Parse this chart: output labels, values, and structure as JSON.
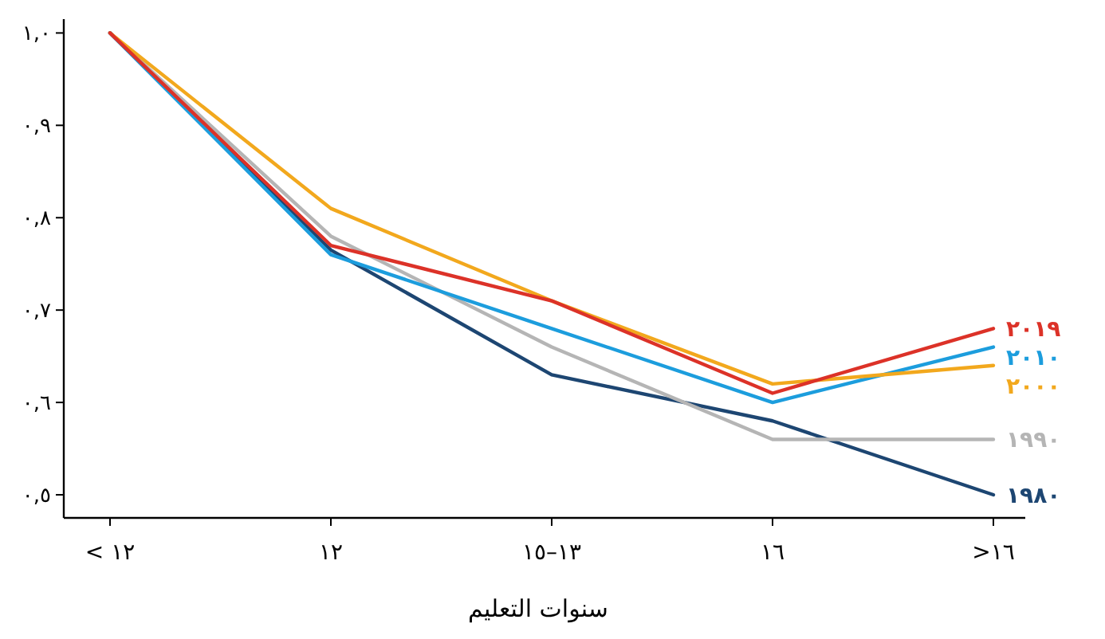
{
  "chart_data": {
    "type": "line",
    "xlabel": "سنوات التعليم",
    "categories": [
      "< ١٢",
      "١٢",
      "١٣–١٥",
      "١٦",
      ">١٦"
    ],
    "ylim": [
      0.475,
      1.015
    ],
    "yticks": [
      {
        "value": 0.5,
        "label": "٠,٥"
      },
      {
        "value": 0.6,
        "label": "٠,٦"
      },
      {
        "value": 0.7,
        "label": "٠,٧"
      },
      {
        "value": 0.8,
        "label": "٠,٨"
      },
      {
        "value": 0.9,
        "label": "٠,٩"
      },
      {
        "value": 1.0,
        "label": "١,٠"
      }
    ],
    "grid": false,
    "legend": false,
    "marker": "none",
    "line_style": "solid",
    "series": [
      {
        "name": "١٩٨٠",
        "color": "#1d4672",
        "values": [
          1.0,
          0.765,
          0.63,
          0.58,
          0.5
        ]
      },
      {
        "name": "١٩٩٠",
        "color": "#b5b5b5",
        "values": [
          1.0,
          0.78,
          0.66,
          0.56,
          0.56
        ]
      },
      {
        "name": "٢٠١٠",
        "color": "#1c9ddd",
        "values": [
          1.0,
          0.76,
          0.68,
          0.6,
          0.66
        ]
      },
      {
        "name": "٢٠٠٠",
        "color": "#f2a81d",
        "values": [
          1.0,
          0.81,
          0.71,
          0.62,
          0.64
        ]
      },
      {
        "name": "٢٠١٩",
        "color": "#dc3228",
        "values": [
          1.0,
          0.77,
          0.71,
          0.61,
          0.68
        ]
      }
    ]
  }
}
